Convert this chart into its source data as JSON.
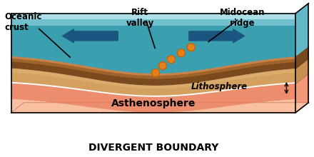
{
  "title": "DIVERGENT BOUNDARY",
  "label_oceanic_crust": "Oceanic\ncrust",
  "label_rift_valley": "Rift\nvalley",
  "label_midocean_ridge": "Midocean\nridge",
  "label_lithosphere": "Lithosphere",
  "label_asthenosphere": "Asthenosphere",
  "color_ocean_deep": "#3a9faf",
  "color_ocean_mid": "#50b8c8",
  "color_ocean_light": "#a0dde8",
  "color_ocean_front": "#b8e8f0",
  "color_crust_dark": "#7a4a1e",
  "color_crust_mid": "#a0642a",
  "color_crust_light": "#c8824a",
  "color_litho_tan": "#d4a060",
  "color_litho_light": "#e0b878",
  "color_asth_top": "#e87858",
  "color_asth_mid": "#f09878",
  "color_asth_bot": "#f8c0a0",
  "color_asth_front_top": "#f09070",
  "color_asth_front_bot": "#f8c0a0",
  "color_magma": "#e88018",
  "color_arrow": "#1a5580",
  "color_background": "#ffffff",
  "title_fontsize": 10,
  "label_fontsize": 8.5
}
